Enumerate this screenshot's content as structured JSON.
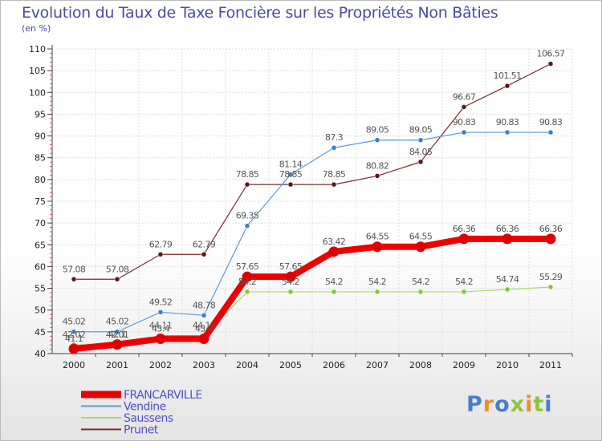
{
  "title": "Evolution du Taux de Taxe Foncière sur les Propriétés Non Bâties",
  "subtitle": "(en %)",
  "logo": {
    "text": "Proxiti",
    "letter_colors": [
      "#4a7fc8",
      "#e8902a",
      "#4a7fc8",
      "#8cc43c",
      "#e8902a",
      "#8cc43c",
      "#4a7fc8"
    ]
  },
  "chart_data": {
    "type": "line",
    "title": "Evolution du Taux de Taxe Foncière sur les Propriétés Non Bâties",
    "ylabel": "(en %)",
    "xlabel": "",
    "x": [
      "2000",
      "2001",
      "2002",
      "2003",
      "2004",
      "2005",
      "2006",
      "2007",
      "2008",
      "2009",
      "2010",
      "2011"
    ],
    "ylim": [
      40,
      110
    ],
    "yticks": [
      40,
      45,
      50,
      55,
      60,
      65,
      70,
      75,
      80,
      85,
      90,
      95,
      100,
      105,
      110
    ],
    "grid": true,
    "legend_position": "bottom-left",
    "series": [
      {
        "name": "Prunet",
        "color": "#7a2a2a",
        "marker_color": "#5a1616",
        "width": 1.2,
        "values": [
          57.08,
          57.08,
          62.79,
          62.79,
          78.85,
          78.85,
          78.85,
          80.82,
          84.05,
          96.67,
          101.51,
          106.57
        ],
        "labels": [
          "57.08",
          "57.08",
          "62.79",
          "62.79",
          "78.85",
          "78.85",
          "78.85",
          "80.82",
          "84.05",
          "96.67",
          "101.51",
          "106.57"
        ]
      },
      {
        "name": "Vendine",
        "color": "#5b9bd5",
        "marker_color": "#3b7fc4",
        "width": 1.2,
        "values": [
          45.02,
          45.02,
          49.52,
          48.78,
          69.35,
          81.14,
          87.3,
          89.05,
          89.05,
          90.83,
          90.83,
          90.83
        ],
        "labels": [
          "45.02",
          "45.02",
          "49.52",
          "48.78",
          "69.35",
          "81.14",
          "87.3",
          "89.05",
          "89.05",
          "90.83",
          "90.83",
          "90.83"
        ]
      },
      {
        "name": "Saussens",
        "color": "#a8d86e",
        "marker_color": "#7ccb2f",
        "width": 1.2,
        "values": [
          42.02,
          42.01,
          44.11,
          44.11,
          54.2,
          54.2,
          54.2,
          54.2,
          54.2,
          54.2,
          54.74,
          55.29
        ],
        "labels": [
          "42.02",
          "42.01",
          "44.11",
          "44.11",
          "54.2",
          "54.2",
          "54.2",
          "54.2",
          "54.2",
          "54.2",
          "54.74",
          "55.29"
        ]
      },
      {
        "name": "FRANCARVILLE",
        "color": "#ee0000",
        "marker_color": "#dd0000",
        "width": 8,
        "values": [
          41.1,
          42.1,
          43.4,
          43.4,
          57.65,
          57.65,
          63.42,
          64.55,
          64.55,
          66.36,
          66.36,
          66.36
        ],
        "labels": [
          "41.1",
          "42.1",
          "43.4",
          "43.4",
          "57.65",
          "57.65",
          "63.42",
          "64.55",
          "64.55",
          "66.36",
          "66.36",
          "66.36"
        ]
      }
    ],
    "legend": [
      "FRANCARVILLE",
      "Vendine",
      "Saussens",
      "Prunet"
    ]
  }
}
